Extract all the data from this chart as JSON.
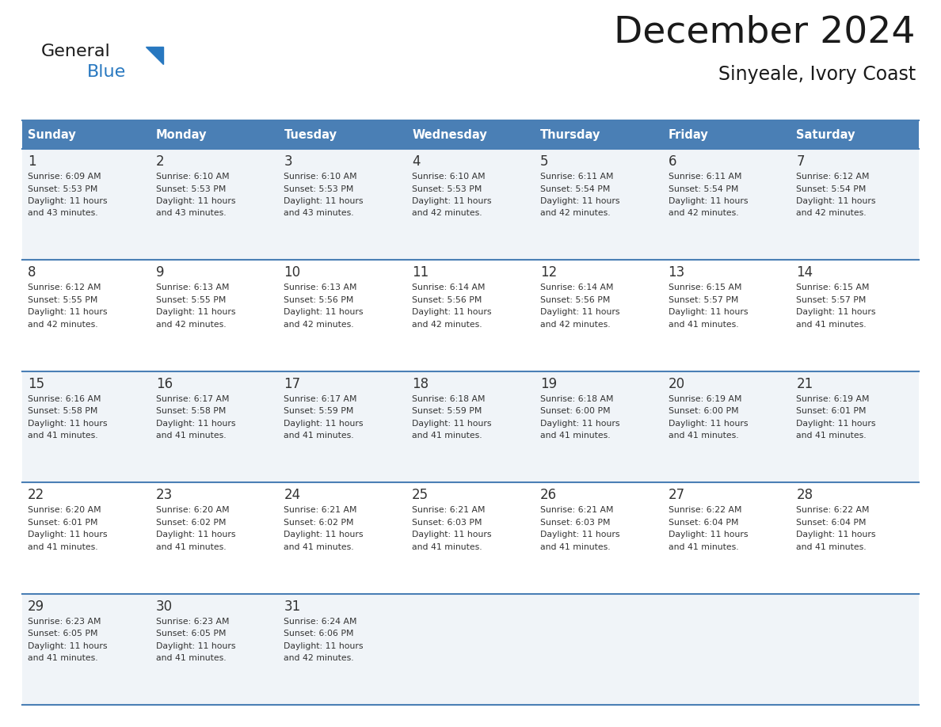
{
  "title": "December 2024",
  "subtitle": "Sinyeale, Ivory Coast",
  "header_bg_color": "#4a7fb5",
  "header_text_color": "#ffffff",
  "cell_bg_color_odd": "#f0f4f8",
  "cell_bg_color_even": "#ffffff",
  "border_color": "#4a7fb5",
  "text_color": "#333333",
  "days_of_week": [
    "Sunday",
    "Monday",
    "Tuesday",
    "Wednesday",
    "Thursday",
    "Friday",
    "Saturday"
  ],
  "calendar_data": [
    [
      {
        "day": 1,
        "sunrise": "6:09 AM",
        "sunset": "5:53 PM",
        "daylight_hours": 11,
        "daylight_minutes": 43
      },
      {
        "day": 2,
        "sunrise": "6:10 AM",
        "sunset": "5:53 PM",
        "daylight_hours": 11,
        "daylight_minutes": 43
      },
      {
        "day": 3,
        "sunrise": "6:10 AM",
        "sunset": "5:53 PM",
        "daylight_hours": 11,
        "daylight_minutes": 43
      },
      {
        "day": 4,
        "sunrise": "6:10 AM",
        "sunset": "5:53 PM",
        "daylight_hours": 11,
        "daylight_minutes": 42
      },
      {
        "day": 5,
        "sunrise": "6:11 AM",
        "sunset": "5:54 PM",
        "daylight_hours": 11,
        "daylight_minutes": 42
      },
      {
        "day": 6,
        "sunrise": "6:11 AM",
        "sunset": "5:54 PM",
        "daylight_hours": 11,
        "daylight_minutes": 42
      },
      {
        "day": 7,
        "sunrise": "6:12 AM",
        "sunset": "5:54 PM",
        "daylight_hours": 11,
        "daylight_minutes": 42
      }
    ],
    [
      {
        "day": 8,
        "sunrise": "6:12 AM",
        "sunset": "5:55 PM",
        "daylight_hours": 11,
        "daylight_minutes": 42
      },
      {
        "day": 9,
        "sunrise": "6:13 AM",
        "sunset": "5:55 PM",
        "daylight_hours": 11,
        "daylight_minutes": 42
      },
      {
        "day": 10,
        "sunrise": "6:13 AM",
        "sunset": "5:56 PM",
        "daylight_hours": 11,
        "daylight_minutes": 42
      },
      {
        "day": 11,
        "sunrise": "6:14 AM",
        "sunset": "5:56 PM",
        "daylight_hours": 11,
        "daylight_minutes": 42
      },
      {
        "day": 12,
        "sunrise": "6:14 AM",
        "sunset": "5:56 PM",
        "daylight_hours": 11,
        "daylight_minutes": 42
      },
      {
        "day": 13,
        "sunrise": "6:15 AM",
        "sunset": "5:57 PM",
        "daylight_hours": 11,
        "daylight_minutes": 41
      },
      {
        "day": 14,
        "sunrise": "6:15 AM",
        "sunset": "5:57 PM",
        "daylight_hours": 11,
        "daylight_minutes": 41
      }
    ],
    [
      {
        "day": 15,
        "sunrise": "6:16 AM",
        "sunset": "5:58 PM",
        "daylight_hours": 11,
        "daylight_minutes": 41
      },
      {
        "day": 16,
        "sunrise": "6:17 AM",
        "sunset": "5:58 PM",
        "daylight_hours": 11,
        "daylight_minutes": 41
      },
      {
        "day": 17,
        "sunrise": "6:17 AM",
        "sunset": "5:59 PM",
        "daylight_hours": 11,
        "daylight_minutes": 41
      },
      {
        "day": 18,
        "sunrise": "6:18 AM",
        "sunset": "5:59 PM",
        "daylight_hours": 11,
        "daylight_minutes": 41
      },
      {
        "day": 19,
        "sunrise": "6:18 AM",
        "sunset": "6:00 PM",
        "daylight_hours": 11,
        "daylight_minutes": 41
      },
      {
        "day": 20,
        "sunrise": "6:19 AM",
        "sunset": "6:00 PM",
        "daylight_hours": 11,
        "daylight_minutes": 41
      },
      {
        "day": 21,
        "sunrise": "6:19 AM",
        "sunset": "6:01 PM",
        "daylight_hours": 11,
        "daylight_minutes": 41
      }
    ],
    [
      {
        "day": 22,
        "sunrise": "6:20 AM",
        "sunset": "6:01 PM",
        "daylight_hours": 11,
        "daylight_minutes": 41
      },
      {
        "day": 23,
        "sunrise": "6:20 AM",
        "sunset": "6:02 PM",
        "daylight_hours": 11,
        "daylight_minutes": 41
      },
      {
        "day": 24,
        "sunrise": "6:21 AM",
        "sunset": "6:02 PM",
        "daylight_hours": 11,
        "daylight_minutes": 41
      },
      {
        "day": 25,
        "sunrise": "6:21 AM",
        "sunset": "6:03 PM",
        "daylight_hours": 11,
        "daylight_minutes": 41
      },
      {
        "day": 26,
        "sunrise": "6:21 AM",
        "sunset": "6:03 PM",
        "daylight_hours": 11,
        "daylight_minutes": 41
      },
      {
        "day": 27,
        "sunrise": "6:22 AM",
        "sunset": "6:04 PM",
        "daylight_hours": 11,
        "daylight_minutes": 41
      },
      {
        "day": 28,
        "sunrise": "6:22 AM",
        "sunset": "6:04 PM",
        "daylight_hours": 11,
        "daylight_minutes": 41
      }
    ],
    [
      {
        "day": 29,
        "sunrise": "6:23 AM",
        "sunset": "6:05 PM",
        "daylight_hours": 11,
        "daylight_minutes": 41
      },
      {
        "day": 30,
        "sunrise": "6:23 AM",
        "sunset": "6:05 PM",
        "daylight_hours": 11,
        "daylight_minutes": 41
      },
      {
        "day": 31,
        "sunrise": "6:24 AM",
        "sunset": "6:06 PM",
        "daylight_hours": 11,
        "daylight_minutes": 42
      },
      null,
      null,
      null,
      null
    ]
  ],
  "logo_color_general": "#1a1a1a",
  "logo_color_blue": "#2878c0",
  "fig_width": 11.88,
  "fig_height": 9.18,
  "dpi": 100
}
